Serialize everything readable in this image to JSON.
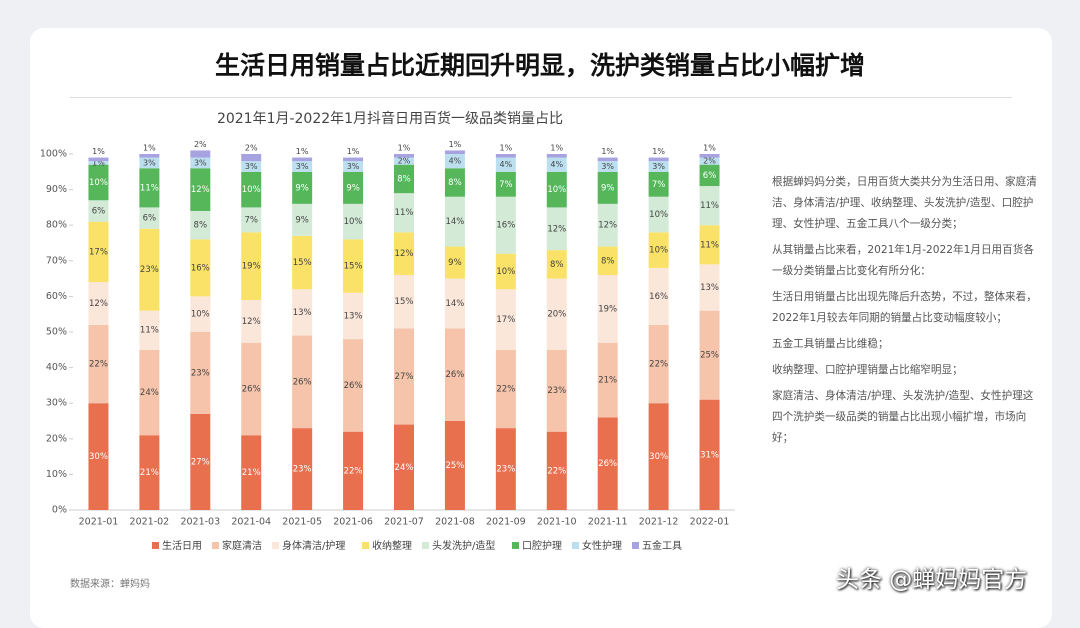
{
  "slide_title": "生活日用销量占比近期回升明显，洗护类销量占比小幅扩增",
  "chart_data": {
    "type": "stacked_bar",
    "title": "2021年1月-2022年1月抖音日用百货一级品类销量占比",
    "categories": [
      "2021-01",
      "2021-02",
      "2021-03",
      "2021-04",
      "2021-05",
      "2021-06",
      "2021-07",
      "2021-08",
      "2021-09",
      "2021-10",
      "2021-11",
      "2021-12",
      "2022-01"
    ],
    "series": [
      {
        "name": "生活日用",
        "color": "#e8704f",
        "values": [
          30,
          21,
          27,
          21,
          23,
          22,
          24,
          25,
          23,
          22,
          26,
          30,
          31
        ],
        "value_labels": [
          "30%",
          "21%",
          "27%",
          "21%",
          "23%",
          "22%",
          "24%",
          "25%",
          "23%",
          "22%",
          "26%",
          "30%",
          "31%"
        ]
      },
      {
        "name": "家庭清洁",
        "color": "#f6c4ab",
        "values": [
          22,
          24,
          23,
          26,
          26,
          26,
          27,
          26,
          22,
          23,
          21,
          22,
          25
        ],
        "value_labels": [
          "22%",
          "24%",
          "23%",
          "26%",
          "26%",
          "26%",
          "27%",
          "26%",
          "22%",
          "23%",
          "21%",
          "22%",
          "25%"
        ]
      },
      {
        "name": "身体清洁/护理",
        "color": "#fbe6da",
        "values": [
          12,
          11,
          10,
          12,
          13,
          13,
          15,
          14,
          17,
          20,
          19,
          16,
          13
        ],
        "value_labels": [
          "12%",
          "11%",
          "10%",
          "12%",
          "13%",
          "13%",
          "15%",
          "14%",
          "17%",
          "20%",
          "19%",
          "16%",
          "13%"
        ]
      },
      {
        "name": "收纳整理",
        "color": "#f9e267",
        "values": [
          17,
          23,
          16,
          19,
          15,
          15,
          12,
          9,
          10,
          8,
          8,
          10,
          11
        ],
        "value_labels": [
          "17%",
          "23%",
          "16%",
          "19%",
          "15%",
          "15%",
          "12%",
          "9%",
          "10%",
          "8%",
          "8%",
          "10%",
          "11%"
        ]
      },
      {
        "name": "头发洗护/造型",
        "color": "#d3ead6",
        "values": [
          6,
          6,
          8,
          7,
          9,
          10,
          11,
          14,
          16,
          12,
          12,
          10,
          11
        ],
        "value_labels": [
          "6%",
          "6%",
          "8%",
          "7%",
          "9%",
          "10%",
          "11%",
          "14%",
          "16%",
          "12%",
          "12%",
          "10%",
          "11%"
        ]
      },
      {
        "name": "口腔护理",
        "color": "#55b65a",
        "values": [
          10,
          11,
          12,
          10,
          9,
          9,
          8,
          8,
          7,
          10,
          9,
          7,
          6
        ],
        "value_labels": [
          "10%",
          "11%",
          "12%",
          "10%",
          "9%",
          "9%",
          "8%",
          "8%",
          "7%",
          "10%",
          "9%",
          "7%",
          "6%"
        ]
      },
      {
        "name": "女性护理",
        "color": "#bcdff0",
        "values": [
          1,
          3,
          3,
          3,
          3,
          3,
          2,
          4,
          4,
          4,
          3,
          3,
          2
        ],
        "value_labels": [
          "1%",
          "3%",
          "3%",
          "3%",
          "3%",
          "3%",
          "2%",
          "4%",
          "4%",
          "4%",
          "3%",
          "3%",
          "2%"
        ]
      },
      {
        "name": "五金工具",
        "color": "#a7a3e0",
        "values": [
          1,
          1,
          2,
          2,
          1,
          1,
          1,
          1,
          1,
          1,
          1,
          1,
          1
        ],
        "value_labels": [
          "1%",
          "1%",
          "2%",
          "2%",
          "1%",
          "1%",
          "1%",
          "1%",
          "1%",
          "1%",
          "1%",
          "1%",
          "1%"
        ]
      }
    ],
    "ylim": [
      0,
      100
    ],
    "yticks": [
      {
        "value": 0,
        "label": "0%"
      },
      {
        "value": 10,
        "label": "10%"
      },
      {
        "value": 20,
        "label": "20%"
      },
      {
        "value": 30,
        "label": "30%"
      },
      {
        "value": 40,
        "label": "40%"
      },
      {
        "value": 50,
        "label": "50%"
      },
      {
        "value": 60,
        "label": "60%"
      },
      {
        "value": 70,
        "label": "70%"
      },
      {
        "value": 80,
        "label": "80%"
      },
      {
        "value": 90,
        "label": "90%"
      },
      {
        "value": 100,
        "label": "100%"
      }
    ],
    "legend": "bottom"
  },
  "notes": [
    "根据蝉妈妈分类，日用百货大类共分为生活日用、家庭清洁、身体清洁/护理、收纳整理、头发洗护/造型、口腔护理、女性护理、五金工具八个一级分类；",
    "从其销量占比来看，2021年1月-2022年1月日用百货各一级分类销量占比变化有所分化：",
    "生活日用销量占比出现先降后升态势，不过，整体来看，2022年1月较去年同期的销量占比变动幅度较小；",
    "五金工具销量占比维稳；",
    "收纳整理、口腔护理销量占比缩窄明显；",
    "家庭清洁、身体清洁/护理、头发洗护/造型、女性护理这四个洗护类一级品类的销量占比出现小幅扩增，市场向好；"
  ],
  "source": "数据来源：蝉妈妈",
  "watermark": "头条 @蝉妈妈官方"
}
